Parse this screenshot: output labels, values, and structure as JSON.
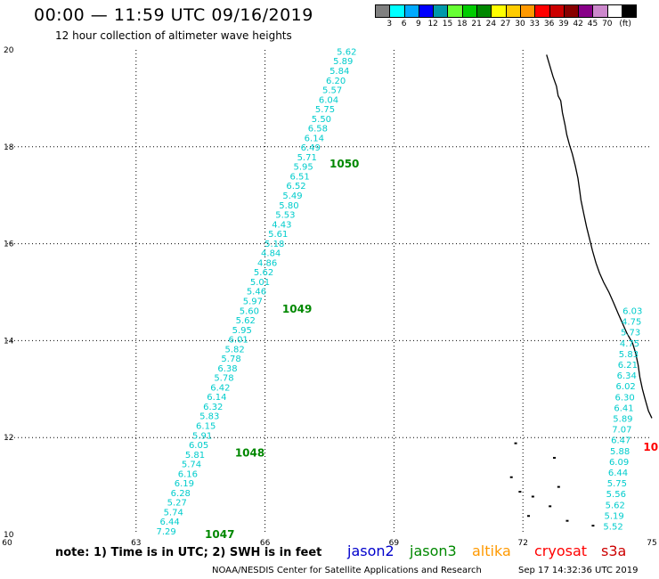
{
  "header": {
    "title": "00:00 — 11:59 UTC 09/16/2019",
    "subtitle": "12 hour collection of altimeter wave heights"
  },
  "legend": {
    "colors": [
      "#808080",
      "#00ffff",
      "#00aaff",
      "#0000ff",
      "#0099aa",
      "#66ff33",
      "#00cc00",
      "#008800",
      "#ffff00",
      "#ffcc00",
      "#ff9900",
      "#ff0000",
      "#cc0000",
      "#880000",
      "#880088",
      "#cc88cc",
      "#ffffff",
      "#000000"
    ],
    "labels": [
      "3",
      "6",
      "9",
      "12",
      "15",
      "18",
      "21",
      "24",
      "27",
      "30",
      "33",
      "36",
      "39",
      "42",
      "45",
      "70",
      "(ft)"
    ]
  },
  "map": {
    "lon_range": [
      60,
      75
    ],
    "lat_range": [
      10,
      20
    ],
    "x_ticks": [
      "60",
      "63",
      "66",
      "69",
      "72",
      "75"
    ],
    "y_ticks": [
      "10",
      "12",
      "14",
      "16",
      "18",
      "20"
    ],
    "grid": true,
    "coastline_color": "#000000",
    "track_jason3": {
      "color": "#00cccc",
      "start": [
        63.7,
        10.0
      ],
      "end": [
        67.9,
        19.9
      ],
      "values": [
        "7.29",
        "6.44",
        "5.74",
        "5.27",
        "6.28",
        "6.19",
        "6.16",
        "5.74",
        "5.81",
        "6.05",
        "5.91",
        "6.15",
        "5.83",
        "6.32",
        "6.14",
        "6.42",
        "5.78",
        "6.38",
        "5.78",
        "5.82",
        "6.01",
        "5.95",
        "5.62",
        "5.60",
        "5.97",
        "5.46",
        "5.01",
        "5.62",
        "4.86",
        "4.84",
        "5.18",
        "5.61",
        "4.43",
        "5.53",
        "5.80",
        "5.49",
        "6.52",
        "6.51",
        "5.95",
        "5.71",
        "6.49",
        "6.14",
        "6.58",
        "5.50",
        "5.75",
        "6.04",
        "5.57",
        "6.20",
        "5.84",
        "5.89",
        "5.62"
      ]
    },
    "track_coastal": {
      "color": "#00cccc",
      "values": [
        "5.52",
        "5.19",
        "5.62",
        "5.56",
        "5.75",
        "6.44",
        "6.09",
        "5.88",
        "6.47",
        "7.07",
        "5.89",
        "6.41",
        "6.30",
        "6.02",
        "6.34",
        "6.21",
        "5.83",
        "4.75",
        "5.73",
        "4.75",
        "6.03"
      ]
    },
    "time_labels": [
      {
        "text": "1047",
        "color": "#008800",
        "lon": 64.6,
        "lat": 10.0
      },
      {
        "text": "1048",
        "color": "#008800",
        "lon": 65.3,
        "lat": 11.68
      },
      {
        "text": "1049",
        "color": "#008800",
        "lon": 66.4,
        "lat": 14.65
      },
      {
        "text": "1050",
        "color": "#008800",
        "lon": 67.5,
        "lat": 17.65
      },
      {
        "text": "10",
        "color": "#ff0000",
        "lon": 74.8,
        "lat": 11.8
      }
    ]
  },
  "footer": {
    "note": "note: 1) Time is in UTC; 2) SWH is in feet",
    "satellites": [
      {
        "name": "jason2",
        "color": "#0000cc"
      },
      {
        "name": "jason3",
        "color": "#008800"
      },
      {
        "name": "altika",
        "color": "#ff9900"
      },
      {
        "name": "cryosat",
        "color": "#ff0000"
      },
      {
        "name": "s3a",
        "color": "#cc0000"
      }
    ],
    "credit": "NOAA/NESDIS Center for Satellite Applications and Research",
    "timestamp": "Sep 17 14:32:36 UTC 2019"
  }
}
